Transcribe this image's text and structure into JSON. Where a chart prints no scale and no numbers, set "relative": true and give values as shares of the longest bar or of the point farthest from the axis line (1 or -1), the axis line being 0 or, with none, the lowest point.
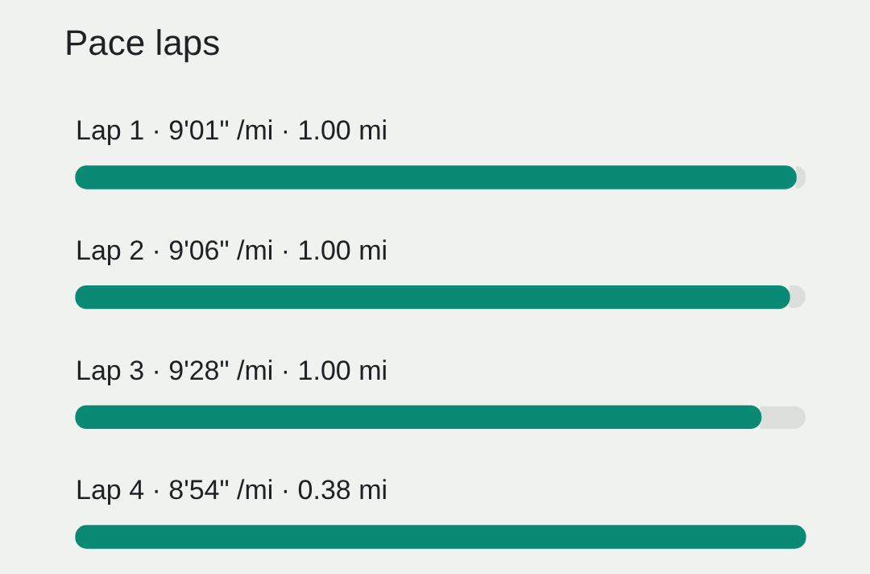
{
  "chart_data": {
    "type": "bar",
    "orientation": "horizontal",
    "relative": true,
    "title": "Pace laps",
    "categories": [
      "Lap 1 · 9'01\" /mi · 1.00 mi",
      "Lap 2 · 9'06\" /mi · 1.00 mi",
      "Lap 3 · 9'28\" /mi · 1.00 mi",
      "Lap 4 · 8'54\" /mi · 0.38 mi"
    ],
    "values": [
      0.987,
      0.978,
      0.939,
      1
    ],
    "color": "#0a8a74"
  }
}
